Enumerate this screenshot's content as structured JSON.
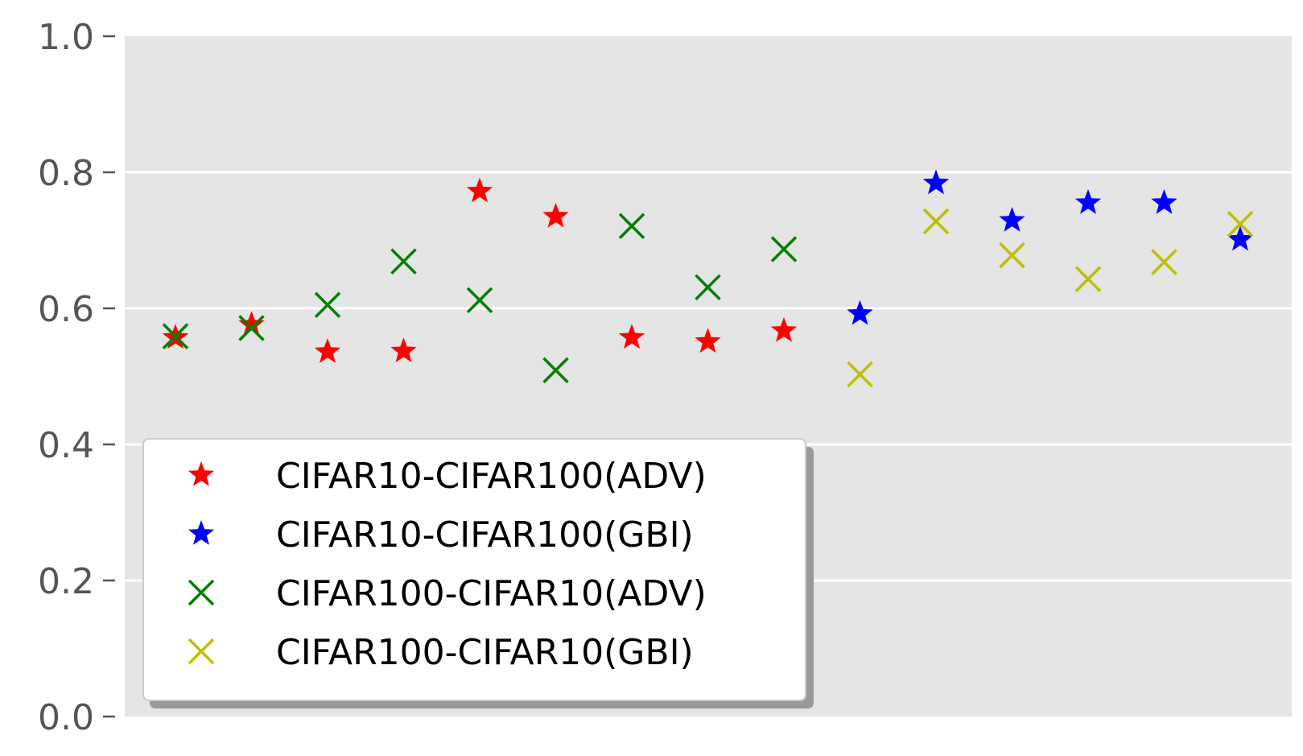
{
  "chart_data": {
    "type": "scatter",
    "title": "",
    "xlabel": "",
    "ylabel": "",
    "ylim": [
      0.0,
      1.0
    ],
    "yticks": [
      "0.0",
      "0.2",
      "0.4",
      "0.6",
      "0.8",
      "1.0"
    ],
    "grid": true,
    "legend": "lower-left",
    "series": [
      {
        "name": "CIFAR10-CIFAR100(ADV)",
        "marker": "star",
        "color": "#ff0000",
        "points": [
          [
            1,
            0.557
          ],
          [
            2,
            0.576
          ],
          [
            3,
            0.536
          ],
          [
            4,
            0.537
          ],
          [
            5,
            0.772
          ],
          [
            6,
            0.735
          ],
          [
            7,
            0.557
          ],
          [
            8,
            0.551
          ],
          [
            9,
            0.567
          ]
        ]
      },
      {
        "name": "CIFAR10-CIFAR100(GBI)",
        "marker": "star",
        "color": "#0000ff",
        "points": [
          [
            10,
            0.592
          ],
          [
            11,
            0.784
          ],
          [
            12,
            0.729
          ],
          [
            13,
            0.755
          ],
          [
            14,
            0.755
          ],
          [
            15,
            0.701
          ]
        ]
      },
      {
        "name": "CIFAR100-CIFAR10(ADV)",
        "marker": "x",
        "color": "#008000",
        "points": [
          [
            1,
            0.559
          ],
          [
            2,
            0.571
          ],
          [
            3,
            0.605
          ],
          [
            4,
            0.669
          ],
          [
            5,
            0.612
          ],
          [
            6,
            0.509
          ],
          [
            7,
            0.721
          ],
          [
            8,
            0.631
          ],
          [
            9,
            0.687
          ]
        ]
      },
      {
        "name": "CIFAR100-CIFAR10(GBI)",
        "marker": "x",
        "color": "#bfbf00",
        "points": [
          [
            10,
            0.503
          ],
          [
            11,
            0.728
          ],
          [
            12,
            0.678
          ],
          [
            13,
            0.643
          ],
          [
            14,
            0.668
          ],
          [
            15,
            0.724
          ]
        ]
      }
    ]
  }
}
